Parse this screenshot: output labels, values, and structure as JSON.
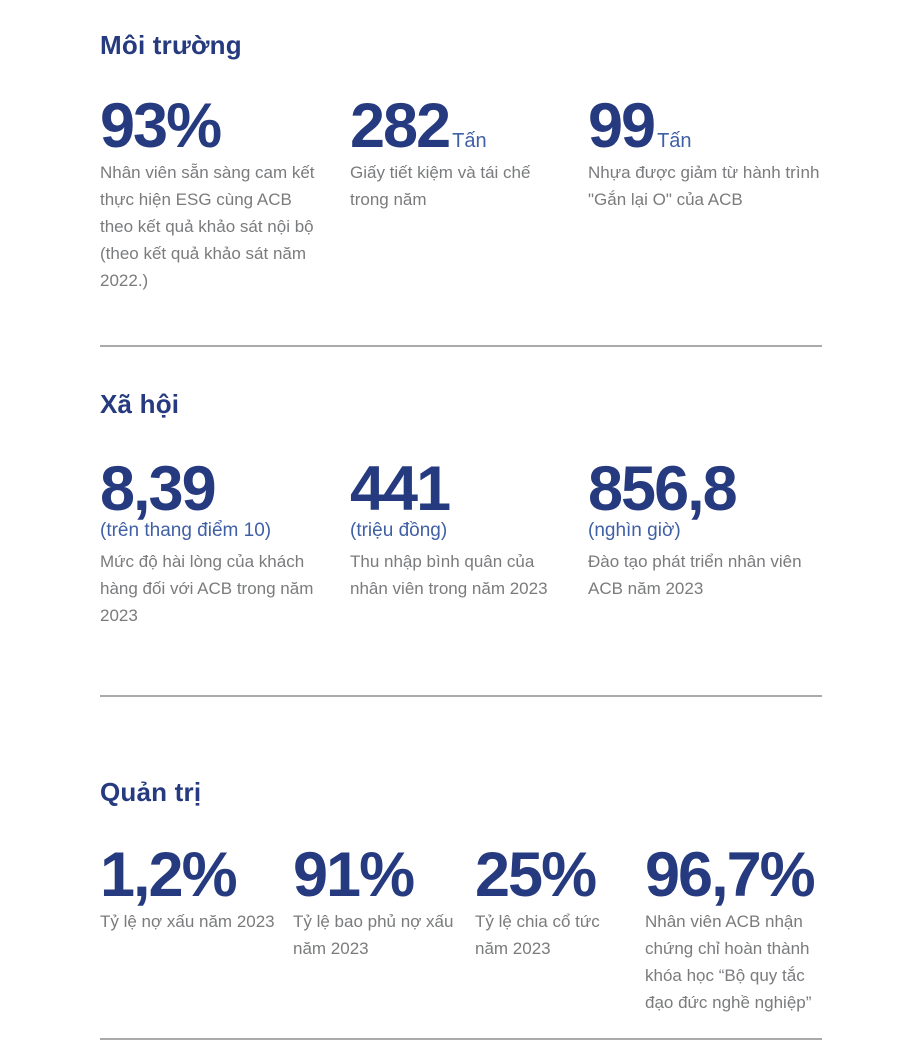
{
  "theme": {
    "accent_color": "#263a7f",
    "sublabel_color": "#4060a5",
    "body_text_color": "#7a7b7d",
    "divider_color": "#a9aaab"
  },
  "sections": [
    {
      "title": "Môi trường",
      "stats": [
        {
          "value": "93%",
          "desc": "Nhân viên sẵn sàng cam kết thực hiện ESG cùng ACB theo kết quả khảo sát nội bộ (theo kết quả khảo sát năm 2022.)"
        },
        {
          "value": "282",
          "unit": "Tấn",
          "desc": "Giấy tiết kiệm và tái chế trong năm"
        },
        {
          "value": "99",
          "unit": "Tấn",
          "desc": "Nhựa được giảm từ hành trình \"Gắn lại O\" của ACB"
        }
      ]
    },
    {
      "title": "Xã hội",
      "stats": [
        {
          "value": "8,39",
          "sublabel": "(trên thang điểm 10)",
          "desc": "Mức độ hài lòng của khách hàng đối với ACB trong năm 2023"
        },
        {
          "value": "441",
          "sublabel": "(triệu đồng)",
          "desc": "Thu nhập bình quân của nhân viên trong năm 2023"
        },
        {
          "value": "856,8",
          "sublabel": "(nghìn giờ)",
          "desc": "Đào tạo phát triển nhân viên ACB năm 2023"
        }
      ]
    },
    {
      "title": "Quản trị",
      "stats": [
        {
          "value": "1,2%",
          "desc": "Tỷ lệ nợ xấu năm 2023"
        },
        {
          "value": "91%",
          "desc": "Tỷ lệ bao phủ nợ xấu năm 2023"
        },
        {
          "value": "25%",
          "desc": "Tỷ lệ chia cổ tức năm 2023"
        },
        {
          "value": "96,7%",
          "desc": "Nhân viên ACB nhận chứng chỉ hoàn thành khóa học “Bộ quy tắc đạo đức nghề nghiệp”"
        }
      ]
    }
  ]
}
